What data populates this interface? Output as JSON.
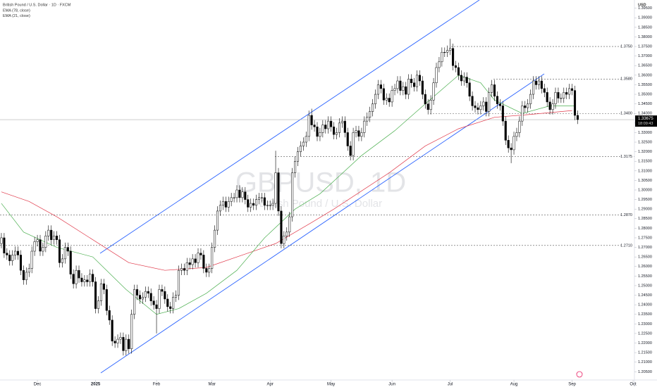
{
  "chart_data": {
    "type": "candlestick",
    "title": "British Pound / U.S. Dollar · 1D · FXCM",
    "watermark": "GBPUSD, 1D",
    "watermark_subtitle": "British Pound / U.S. Dollar",
    "currency": "USD",
    "up_color": "#ffffff",
    "down_color": "#000000",
    "open": [
      1.272,
      1.275,
      1.267,
      1.266,
      1.263,
      1.266,
      1.268,
      1.266,
      1.258,
      1.253,
      1.257,
      1.259,
      1.268,
      1.273,
      1.274,
      1.268,
      1.27,
      1.276,
      1.279,
      1.274,
      1.276,
      1.274,
      1.262,
      1.264,
      1.27,
      1.268,
      1.256,
      1.251,
      1.258,
      1.254,
      1.252,
      1.253,
      1.252,
      1.256,
      1.252,
      1.238,
      1.242,
      1.251,
      1.248,
      1.237,
      1.232,
      1.221,
      1.22,
      1.222,
      1.223,
      1.216,
      1.222,
      1.217,
      1.235,
      1.248,
      1.245,
      1.243,
      1.244,
      1.247,
      1.246,
      1.242,
      1.24,
      1.238,
      1.248,
      1.247,
      1.243,
      1.239,
      1.238,
      1.244,
      1.245,
      1.258,
      1.259,
      1.258,
      1.262,
      1.261,
      1.264,
      1.262,
      1.267,
      1.266,
      1.259,
      1.257,
      1.259,
      1.27,
      1.279,
      1.289,
      1.292,
      1.294,
      1.291,
      1.294,
      1.296,
      1.296,
      1.3,
      1.296,
      1.299,
      1.295,
      1.291,
      1.293,
      1.292,
      1.295,
      1.296,
      1.296,
      1.292,
      1.292,
      1.292,
      1.293,
      1.309,
      1.289,
      1.272,
      1.276,
      1.278,
      1.286,
      1.309,
      1.315,
      1.32,
      1.323,
      1.325,
      1.328,
      1.339,
      1.334,
      1.333,
      1.328,
      1.33,
      1.334,
      1.332,
      1.336,
      1.333,
      1.329,
      1.33,
      1.335,
      1.336,
      1.33,
      1.323,
      1.318,
      1.33,
      1.331,
      1.328,
      1.33,
      1.336,
      1.338,
      1.341,
      1.345,
      1.35,
      1.355,
      1.353,
      1.347,
      1.348,
      1.346,
      1.352,
      1.353,
      1.357,
      1.352,
      1.354,
      1.35,
      1.358,
      1.356,
      1.354,
      1.36,
      1.357,
      1.35,
      1.345,
      1.342,
      1.347,
      1.356,
      1.364,
      1.367,
      1.372,
      1.372,
      1.373,
      1.374,
      1.365,
      1.364,
      1.36,
      1.357,
      1.359,
      1.356,
      1.349,
      1.344,
      1.343,
      1.342,
      1.344,
      1.346,
      1.341,
      1.351,
      1.355,
      1.349,
      1.345,
      1.344,
      1.336,
      1.326,
      1.322,
      1.321,
      1.328,
      1.33,
      1.336,
      1.344,
      1.343,
      1.345,
      1.35,
      1.357,
      1.355,
      1.357,
      1.353,
      1.351,
      1.346,
      1.342,
      1.345,
      1.351,
      1.348,
      1.348,
      1.351,
      1.35,
      1.353,
      1.352,
      1.339
    ],
    "high": [
      1.2775,
      1.2775,
      1.2695,
      1.2685,
      1.2685,
      1.2705,
      1.2705,
      1.2685,
      1.2605,
      1.2595,
      1.2615,
      1.2705,
      1.2755,
      1.2765,
      1.2765,
      1.2725,
      1.2785,
      1.2815,
      1.2815,
      1.2785,
      1.2785,
      1.2765,
      1.2665,
      1.2725,
      1.2725,
      1.2705,
      1.2585,
      1.2605,
      1.2605,
      1.2565,
      1.2555,
      1.2555,
      1.2585,
      1.2585,
      1.2545,
      1.2445,
      1.2535,
      1.2535,
      1.2505,
      1.2395,
      1.2345,
      1.2235,
      1.2245,
      1.2255,
      1.2255,
      1.2245,
      1.2245,
      1.2375,
      1.2505,
      1.2505,
      1.2475,
      1.2465,
      1.2495,
      1.2495,
      1.2485,
      1.2445,
      1.2425,
      1.2505,
      1.2505,
      1.2495,
      1.2455,
      1.2415,
      1.2465,
      1.2475,
      1.2605,
      1.2615,
      1.2615,
      1.2645,
      1.2645,
      1.2665,
      1.2665,
      1.2695,
      1.2695,
      1.2685,
      1.2615,
      1.2615,
      1.2725,
      1.2815,
      1.2915,
      1.2945,
      1.2965,
      1.2965,
      1.2965,
      1.2985,
      1.2985,
      1.3025,
      1.3025,
      1.3015,
      1.3015,
      1.2975,
      1.2955,
      1.2955,
      1.2975,
      1.2985,
      1.2985,
      1.2985,
      1.2945,
      1.2945,
      1.2955,
      1.3205,
      1.3115,
      1.2915,
      1.2785,
      1.2805,
      1.2885,
      1.3115,
      1.3175,
      1.3225,
      1.3255,
      1.3275,
      1.3305,
      1.3415,
      1.3425,
      1.3365,
      1.3355,
      1.3325,
      1.3365,
      1.3365,
      1.3385,
      1.3385,
      1.3355,
      1.3325,
      1.3375,
      1.3385,
      1.3385,
      1.3325,
      1.3255,
      1.3325,
      1.3335,
      1.3335,
      1.3325,
      1.3385,
      1.3405,
      1.3435,
      1.3475,
      1.3525,
      1.3575,
      1.3575,
      1.3555,
      1.3505,
      1.3505,
      1.3545,
      1.3555,
      1.3595,
      1.3595,
      1.3565,
      1.3565,
      1.3605,
      1.3605,
      1.3585,
      1.3625,
      1.3625,
      1.3595,
      1.3525,
      1.3475,
      1.3495,
      1.3585,
      1.3665,
      1.3695,
      1.3745,
      1.3745,
      1.3755,
      1.379,
      1.3765,
      1.3675,
      1.3665,
      1.3625,
      1.3615,
      1.3615,
      1.3585,
      1.3515,
      1.3465,
      1.3455,
      1.3465,
      1.3485,
      1.3485,
      1.3535,
      1.3575,
      1.3575,
      1.3515,
      1.3475,
      1.3465,
      1.3385,
      1.3285,
      1.3245,
      1.3305,
      1.3325,
      1.3385,
      1.3465,
      1.3465,
      1.3475,
      1.3525,
      1.3595,
      1.3595,
      1.3595,
      1.3595,
      1.3555,
      1.3535,
      1.3485,
      1.3475,
      1.3535,
      1.3535,
      1.3505,
      1.3535,
      1.3535,
      1.3555,
      1.3555,
      1.3545,
      1.3415
    ],
    "low": [
      1.2695,
      1.2645,
      1.2635,
      1.2605,
      1.2605,
      1.2635,
      1.2635,
      1.2555,
      1.2505,
      1.2505,
      1.2545,
      1.2565,
      1.2655,
      1.2705,
      1.2655,
      1.2655,
      1.2675,
      1.2735,
      1.2715,
      1.2715,
      1.2715,
      1.2595,
      1.2595,
      1.2615,
      1.2655,
      1.2535,
      1.2485,
      1.2485,
      1.2515,
      1.2495,
      1.2495,
      1.2495,
      1.2495,
      1.2495,
      1.2355,
      1.2355,
      1.2395,
      1.2455,
      1.2345,
      1.2295,
      1.2185,
      1.2175,
      1.2175,
      1.2195,
      1.2135,
      1.2135,
      1.2145,
      1.2145,
      1.2325,
      1.2425,
      1.2405,
      1.2405,
      1.2415,
      1.2435,
      1.2395,
      1.2375,
      1.225,
      1.2355,
      1.2445,
      1.2405,
      1.2365,
      1.2355,
      1.2355,
      1.2415,
      1.2425,
      1.2555,
      1.2555,
      1.2555,
      1.2585,
      1.2585,
      1.2595,
      1.2595,
      1.2635,
      1.2565,
      1.2545,
      1.2545,
      1.2565,
      1.2675,
      1.2765,
      1.2865,
      1.2895,
      1.2885,
      1.2885,
      1.2915,
      1.2935,
      1.2935,
      1.2935,
      1.2935,
      1.2925,
      1.2885,
      1.2885,
      1.2895,
      1.2895,
      1.2925,
      1.2935,
      1.2895,
      1.2895,
      1.2895,
      1.2895,
      1.2905,
      1.2865,
      1.2695,
      1.2695,
      1.2735,
      1.2755,
      1.2835,
      1.3065,
      1.3125,
      1.3175,
      1.3205,
      1.3225,
      1.3255,
      1.3315,
      1.3305,
      1.3255,
      1.3255,
      1.3275,
      1.3295,
      1.3295,
      1.3305,
      1.3265,
      1.3265,
      1.3275,
      1.3325,
      1.3275,
      1.3205,
      1.3155,
      1.3155,
      1.3275,
      1.3255,
      1.3255,
      1.3275,
      1.3335,
      1.3355,
      1.3385,
      1.3425,
      1.3475,
      1.3505,
      1.3445,
      1.3445,
      1.3435,
      1.3435,
      1.3495,
      1.3505,
      1.3495,
      1.3495,
      1.3475,
      1.3475,
      1.3535,
      1.3515,
      1.3515,
      1.3545,
      1.3475,
      1.3425,
      1.3395,
      1.3395,
      1.3445,
      1.3535,
      1.3615,
      1.3645,
      1.3695,
      1.3695,
      1.3705,
      1.3625,
      1.3615,
      1.3575,
      1.3545,
      1.3545,
      1.3535,
      1.3465,
      1.3415,
      1.3405,
      1.3395,
      1.3395,
      1.3415,
      1.3385,
      1.3385,
      1.3485,
      1.3465,
      1.3425,
      1.3415,
      1.3335,
      1.3235,
      1.3195,
      1.314,
      1.3185,
      1.3255,
      1.3275,
      1.3335,
      1.3405,
      1.3405,
      1.3425,
      1.3475,
      1.3525,
      1.3525,
      1.3505,
      1.3485,
      1.3435,
      1.3395,
      1.3395,
      1.3425,
      1.3455,
      1.3455,
      1.3455,
      1.3475,
      1.3475,
      1.3495,
      1.3365,
      1.3345
    ],
    "close": [
      1.275,
      1.267,
      1.266,
      1.263,
      1.266,
      1.268,
      1.266,
      1.258,
      1.253,
      1.257,
      1.259,
      1.268,
      1.273,
      1.274,
      1.268,
      1.27,
      1.276,
      1.279,
      1.274,
      1.276,
      1.274,
      1.262,
      1.264,
      1.27,
      1.268,
      1.256,
      1.251,
      1.258,
      1.254,
      1.252,
      1.253,
      1.252,
      1.256,
      1.252,
      1.238,
      1.242,
      1.251,
      1.248,
      1.237,
      1.232,
      1.221,
      1.22,
      1.222,
      1.223,
      1.216,
      1.222,
      1.217,
      1.235,
      1.248,
      1.245,
      1.243,
      1.244,
      1.247,
      1.246,
      1.242,
      1.24,
      1.238,
      1.248,
      1.247,
      1.243,
      1.239,
      1.238,
      1.244,
      1.245,
      1.258,
      1.259,
      1.258,
      1.262,
      1.261,
      1.264,
      1.262,
      1.267,
      1.266,
      1.259,
      1.257,
      1.259,
      1.27,
      1.279,
      1.289,
      1.292,
      1.294,
      1.291,
      1.294,
      1.296,
      1.296,
      1.3,
      1.296,
      1.299,
      1.295,
      1.291,
      1.293,
      1.292,
      1.295,
      1.296,
      1.296,
      1.292,
      1.292,
      1.292,
      1.293,
      1.309,
      1.289,
      1.272,
      1.276,
      1.278,
      1.286,
      1.309,
      1.315,
      1.32,
      1.323,
      1.325,
      1.328,
      1.339,
      1.334,
      1.333,
      1.328,
      1.33,
      1.334,
      1.332,
      1.336,
      1.333,
      1.329,
      1.33,
      1.335,
      1.336,
      1.33,
      1.323,
      1.318,
      1.33,
      1.331,
      1.328,
      1.33,
      1.336,
      1.338,
      1.341,
      1.345,
      1.35,
      1.355,
      1.353,
      1.347,
      1.348,
      1.346,
      1.352,
      1.353,
      1.357,
      1.352,
      1.354,
      1.35,
      1.358,
      1.356,
      1.354,
      1.36,
      1.357,
      1.35,
      1.345,
      1.342,
      1.347,
      1.356,
      1.364,
      1.367,
      1.372,
      1.372,
      1.373,
      1.374,
      1.365,
      1.364,
      1.36,
      1.357,
      1.359,
      1.356,
      1.349,
      1.344,
      1.343,
      1.342,
      1.344,
      1.346,
      1.341,
      1.351,
      1.355,
      1.349,
      1.345,
      1.344,
      1.336,
      1.326,
      1.322,
      1.321,
      1.328,
      1.33,
      1.336,
      1.344,
      1.343,
      1.345,
      1.35,
      1.357,
      1.355,
      1.357,
      1.353,
      1.351,
      1.346,
      1.342,
      1.345,
      1.351,
      1.348,
      1.348,
      1.351,
      1.35,
      1.353,
      1.352,
      1.339,
      1.3368
    ],
    "indicators": [
      {
        "name": "EMA (78, close)",
        "color": "#e0394a",
        "x": [
          0,
          10,
          20,
          33,
          46,
          59,
          74,
          87,
          99,
          112,
          120,
          140,
          153,
          165,
          178,
          191,
          206
        ],
        "values": [
          1.299,
          1.294,
          1.286,
          1.274,
          1.262,
          1.258,
          1.2595,
          1.266,
          1.272,
          1.283,
          1.29,
          1.309,
          1.323,
          1.332,
          1.338,
          1.3395,
          1.3415
        ]
      },
      {
        "name": "EMA (21, close)",
        "color": "#4caf50",
        "x": [
          0,
          8,
          20,
          33,
          45,
          56,
          64,
          74,
          85,
          95,
          106,
          115,
          130,
          142,
          153,
          165,
          173,
          178,
          188,
          198,
          207
        ],
        "values": [
          1.293,
          1.278,
          1.27,
          1.265,
          1.248,
          1.235,
          1.238,
          1.246,
          1.258,
          1.275,
          1.29,
          1.298,
          1.318,
          1.331,
          1.345,
          1.36,
          1.356,
          1.347,
          1.34,
          1.344,
          1.344
        ]
      }
    ],
    "levels": [
      {
        "value": 1.375,
        "label": "1.3750"
      },
      {
        "value": 1.358,
        "label": "1.3580"
      },
      {
        "value": 1.34,
        "label": "1.3400"
      },
      {
        "value": 1.3175,
        "label": "1.3175"
      },
      {
        "value": 1.287,
        "label": "1.2870"
      },
      {
        "value": 1.271,
        "label": "1.2710"
      }
    ],
    "last_price": 1.33675,
    "countdown": "18:09:43",
    "xlim": [
      -0.5,
      228.5
    ],
    "xticks": [
      {
        "value": 13,
        "label": "Dec"
      },
      {
        "value": 34,
        "label": "2025"
      },
      {
        "value": 56,
        "label": "Feb"
      },
      {
        "value": 76,
        "label": "Mar"
      },
      {
        "value": 97,
        "label": "Apr"
      },
      {
        "value": 119,
        "label": "May"
      },
      {
        "value": 141,
        "label": "Jun"
      },
      {
        "value": 162,
        "label": "Jul"
      },
      {
        "value": 185,
        "label": "Aug"
      },
      {
        "value": 206,
        "label": "Sep"
      },
      {
        "value": 228,
        "label": "Oct"
      }
    ],
    "ylim": [
      1.2007,
      1.3993
    ],
    "yticks": [
      {
        "value": 1.205,
        "label": "1.20500"
      },
      {
        "value": 1.21,
        "label": "1.21000"
      },
      {
        "value": 1.215,
        "label": "1.21500"
      },
      {
        "value": 1.22,
        "label": "1.22000"
      },
      {
        "value": 1.225,
        "label": "1.22500"
      },
      {
        "value": 1.23,
        "label": "1.23000"
      },
      {
        "value": 1.235,
        "label": "1.23500"
      },
      {
        "value": 1.24,
        "label": "1.24000"
      },
      {
        "value": 1.245,
        "label": "1.24500"
      },
      {
        "value": 1.25,
        "label": "1.25000"
      },
      {
        "value": 1.255,
        "label": "1.25500"
      },
      {
        "value": 1.26,
        "label": "1.26000"
      },
      {
        "value": 1.265,
        "label": "1.26500"
      },
      {
        "value": 1.27,
        "label": "1.27000"
      },
      {
        "value": 1.275,
        "label": "1.27500"
      },
      {
        "value": 1.28,
        "label": "1.28000"
      },
      {
        "value": 1.285,
        "label": "1.28500"
      },
      {
        "value": 1.29,
        "label": "1.29000"
      },
      {
        "value": 1.295,
        "label": "1.29500"
      },
      {
        "value": 1.3,
        "label": "1.30000"
      },
      {
        "value": 1.305,
        "label": "1.30500"
      },
      {
        "value": 1.31,
        "label": "1.31000"
      },
      {
        "value": 1.315,
        "label": "1.31500"
      },
      {
        "value": 1.32,
        "label": "1.32000"
      },
      {
        "value": 1.325,
        "label": "1.32500"
      },
      {
        "value": 1.33,
        "label": "1.33000"
      },
      {
        "value": 1.335,
        "label": "1.33500"
      },
      {
        "value": 1.34,
        "label": "1.34000"
      },
      {
        "value": 1.345,
        "label": "1.34500"
      },
      {
        "value": 1.35,
        "label": "1.35000"
      },
      {
        "value": 1.355,
        "label": "1.35500"
      },
      {
        "value": 1.36,
        "label": "1.36000"
      },
      {
        "value": 1.365,
        "label": "1.36500"
      },
      {
        "value": 1.37,
        "label": "1.37000"
      },
      {
        "value": 1.375,
        "label": "1.37500"
      },
      {
        "value": 1.38,
        "label": "1.38000"
      },
      {
        "value": 1.385,
        "label": "1.38500"
      },
      {
        "value": 1.39,
        "label": "1.39000"
      },
      {
        "value": 1.395,
        "label": "1.39500"
      }
    ]
  }
}
